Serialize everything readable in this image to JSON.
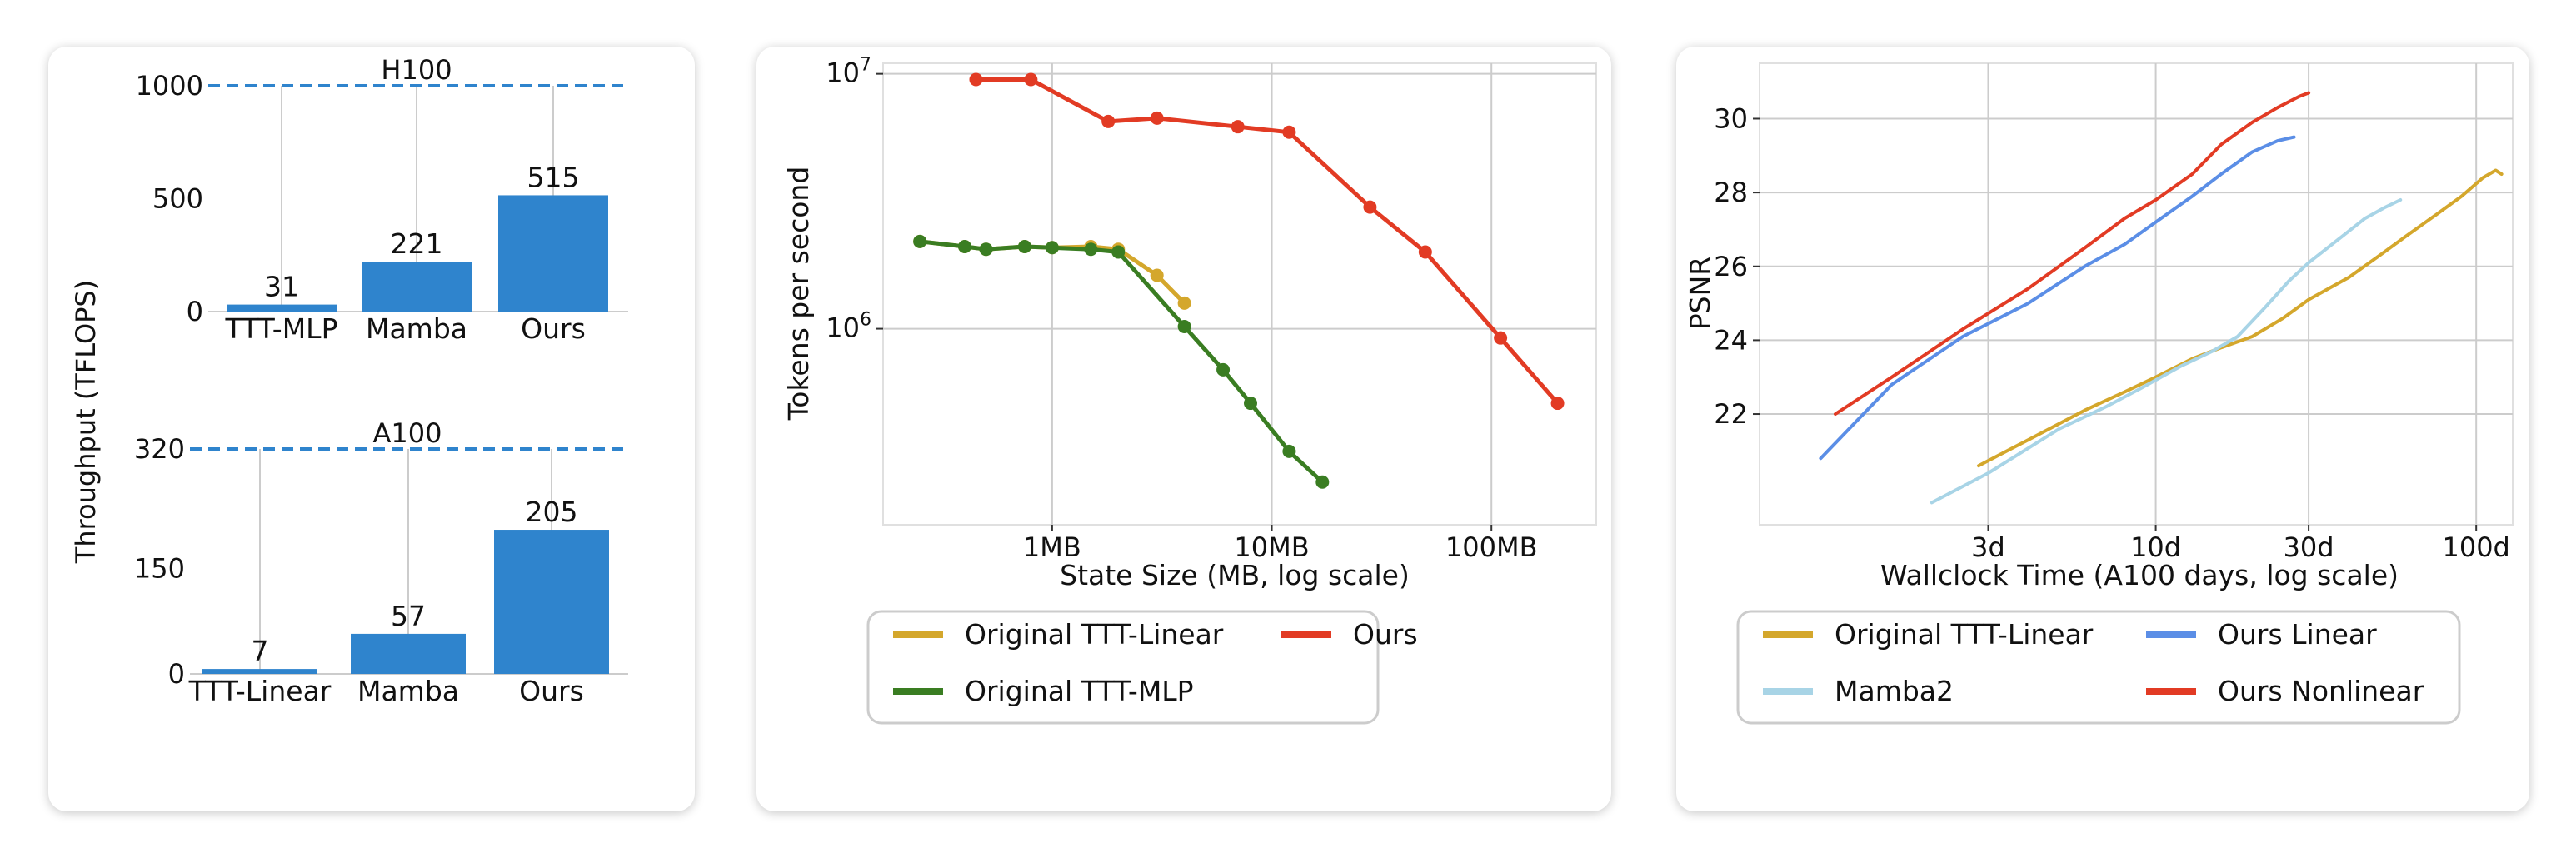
{
  "colors": {
    "bar": "#2f84cd",
    "peak_line": "#2f84cd",
    "orig_linear": "#d4a72c",
    "orig_mlp": "#3a7d22",
    "ours": "#e23b24",
    "ours_linear": "#5b8ee6",
    "mamba2": "#a8d4e6",
    "grid": "#cccccc"
  },
  "chart_data": [
    {
      "type": "bar",
      "ylabel": "Throughput (TFLOPS)",
      "subplots": [
        {
          "peak_label": "H100",
          "peak_value": 1000,
          "categories": [
            "TTT-MLP",
            "Mamba",
            "Ours"
          ],
          "values": [
            31,
            221,
            515
          ],
          "value_labels": [
            "31",
            "221",
            "515"
          ],
          "yticks": [
            0,
            500,
            1000
          ],
          "ytick_labels": [
            "0",
            "500",
            "1000"
          ],
          "ylim": [
            0,
            1000
          ]
        },
        {
          "peak_label": "A100",
          "peak_value": 320,
          "categories": [
            "TTT-Linear",
            "Mamba",
            "Ours"
          ],
          "values": [
            7,
            57,
            205
          ],
          "value_labels": [
            "7",
            "57",
            "205"
          ],
          "yticks": [
            0,
            150,
            320
          ],
          "ytick_labels": [
            "0",
            "150",
            "320"
          ],
          "ylim": [
            0,
            320
          ]
        }
      ]
    },
    {
      "type": "line",
      "xlabel": "State Size (MB, log scale)",
      "ylabel": "Tokens per second",
      "x_scale": "log",
      "y_scale": "log",
      "xlim": [
        0.17,
        300
      ],
      "ylim": [
        170000,
        11000000
      ],
      "xticks": [
        1,
        10,
        100
      ],
      "xtick_labels": [
        "1MB",
        "10MB",
        "100MB"
      ],
      "yticks": [
        1000000,
        10000000
      ],
      "ytick_bases": [
        "10",
        "10"
      ],
      "ytick_exps": [
        "6",
        "7"
      ],
      "legend_position": "bottom",
      "series": [
        {
          "name": "Original TTT-Linear",
          "color_key": "orig_linear",
          "x": [
            0.25,
            0.4,
            0.5,
            0.75,
            1.0,
            1.5,
            2.0,
            3.0,
            4.0
          ],
          "y": [
            2200000,
            2100000,
            2050000,
            2100000,
            2080000,
            2100000,
            2050000,
            1620000,
            1260000
          ]
        },
        {
          "name": "Original TTT-MLP",
          "color_key": "orig_mlp",
          "x": [
            0.25,
            0.4,
            0.5,
            0.75,
            1.0,
            1.5,
            2.0,
            4.0,
            6.0,
            8.0,
            12.0,
            17.0
          ],
          "y": [
            2200000,
            2100000,
            2050000,
            2100000,
            2080000,
            2050000,
            2000000,
            1020000,
            690000,
            510000,
            330000,
            250000
          ]
        },
        {
          "name": "Ours",
          "color_key": "ours",
          "x": [
            0.45,
            0.8,
            1.8,
            3.0,
            7.0,
            12.0,
            28.0,
            50.0,
            110.0,
            200.0
          ],
          "y": [
            9500000,
            9500000,
            6500000,
            6700000,
            6200000,
            5900000,
            3000000,
            2000000,
            920000,
            510000
          ]
        }
      ]
    },
    {
      "type": "line",
      "xlabel": "Wallclock Time (A100 days, log scale)",
      "ylabel": "PSNR",
      "x_scale": "log",
      "xlim": [
        0.58,
        130
      ],
      "ylim": [
        19,
        31.5
      ],
      "xticks": [
        3,
        10,
        30,
        100
      ],
      "xtick_labels": [
        "3d",
        "10d",
        "30d",
        "100d"
      ],
      "yticks": [
        22,
        24,
        26,
        28,
        30
      ],
      "ytick_labels": [
        "22",
        "24",
        "26",
        "28",
        "30"
      ],
      "legend_position": "bottom",
      "series": [
        {
          "name": "Original TTT-Linear",
          "color_key": "orig_linear",
          "x": [
            2.8,
            4,
            6,
            8,
            10,
            13,
            16,
            20,
            25,
            30,
            40,
            50,
            60,
            75,
            90,
            105,
            115,
            120
          ],
          "y": [
            20.6,
            21.3,
            22.1,
            22.6,
            23.0,
            23.5,
            23.8,
            24.1,
            24.6,
            25.1,
            25.7,
            26.3,
            26.8,
            27.4,
            27.9,
            28.4,
            28.6,
            28.5
          ]
        },
        {
          "name": "Mamba2",
          "color_key": "mamba2",
          "x": [
            2.0,
            3,
            5,
            7,
            9,
            12,
            15,
            18,
            22,
            26,
            30,
            38,
            45,
            52,
            58
          ],
          "y": [
            19.6,
            20.4,
            21.6,
            22.2,
            22.7,
            23.3,
            23.7,
            24.1,
            24.9,
            25.6,
            26.1,
            26.8,
            27.3,
            27.6,
            27.8
          ]
        },
        {
          "name": "Ours Linear",
          "color_key": "ours_linear",
          "x": [
            0.9,
            1.5,
            2.5,
            4,
            6,
            8,
            10,
            13,
            16,
            20,
            24,
            27
          ],
          "y": [
            20.8,
            22.8,
            24.1,
            25.0,
            26.0,
            26.6,
            27.2,
            27.9,
            28.5,
            29.1,
            29.4,
            29.5
          ]
        },
        {
          "name": "Ours Nonlinear",
          "color_key": "ours",
          "x": [
            1.0,
            1.5,
            2.5,
            4,
            6,
            8,
            10,
            13,
            16,
            20,
            24,
            28,
            30
          ],
          "y": [
            22.0,
            23.0,
            24.3,
            25.4,
            26.5,
            27.3,
            27.8,
            28.5,
            29.3,
            29.9,
            30.3,
            30.6,
            30.7
          ]
        }
      ]
    }
  ]
}
